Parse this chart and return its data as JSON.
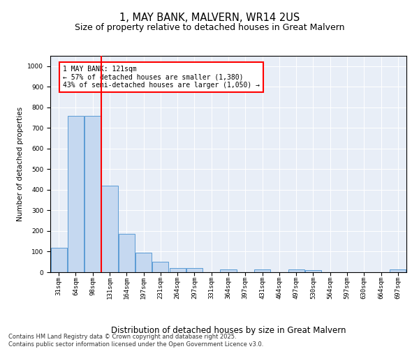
{
  "title": "1, MAY BANK, MALVERN, WR14 2US",
  "subtitle": "Size of property relative to detached houses in Great Malvern",
  "xlabel": "Distribution of detached houses by size in Great Malvern",
  "ylabel": "Number of detached properties",
  "categories": [
    "31sqm",
    "64sqm",
    "98sqm",
    "131sqm",
    "164sqm",
    "197sqm",
    "231sqm",
    "264sqm",
    "297sqm",
    "331sqm",
    "364sqm",
    "397sqm",
    "431sqm",
    "464sqm",
    "497sqm",
    "530sqm",
    "564sqm",
    "597sqm",
    "630sqm",
    "664sqm",
    "697sqm"
  ],
  "values": [
    120,
    760,
    760,
    420,
    185,
    95,
    50,
    20,
    20,
    0,
    15,
    0,
    15,
    0,
    15,
    10,
    0,
    0,
    0,
    0,
    15
  ],
  "bar_color": "#c5d8f0",
  "bar_edge_color": "#5b9bd5",
  "vline_color": "red",
  "annotation_line1": "1 MAY BANK: 121sqm",
  "annotation_line2": "← 57% of detached houses are smaller (1,380)",
  "annotation_line3": "43% of semi-detached houses are larger (1,050) →",
  "ylim": [
    0,
    1050
  ],
  "yticks": [
    0,
    100,
    200,
    300,
    400,
    500,
    600,
    700,
    800,
    900,
    1000
  ],
  "background_color": "#e8eef7",
  "grid_color": "#ffffff",
  "footer_line1": "Contains HM Land Registry data © Crown copyright and database right 2025.",
  "footer_line2": "Contains public sector information licensed under the Open Government Licence v3.0.",
  "title_fontsize": 10.5,
  "subtitle_fontsize": 9,
  "xlabel_fontsize": 8.5,
  "ylabel_fontsize": 7.5,
  "tick_fontsize": 6.5,
  "annotation_fontsize": 7,
  "footer_fontsize": 6
}
